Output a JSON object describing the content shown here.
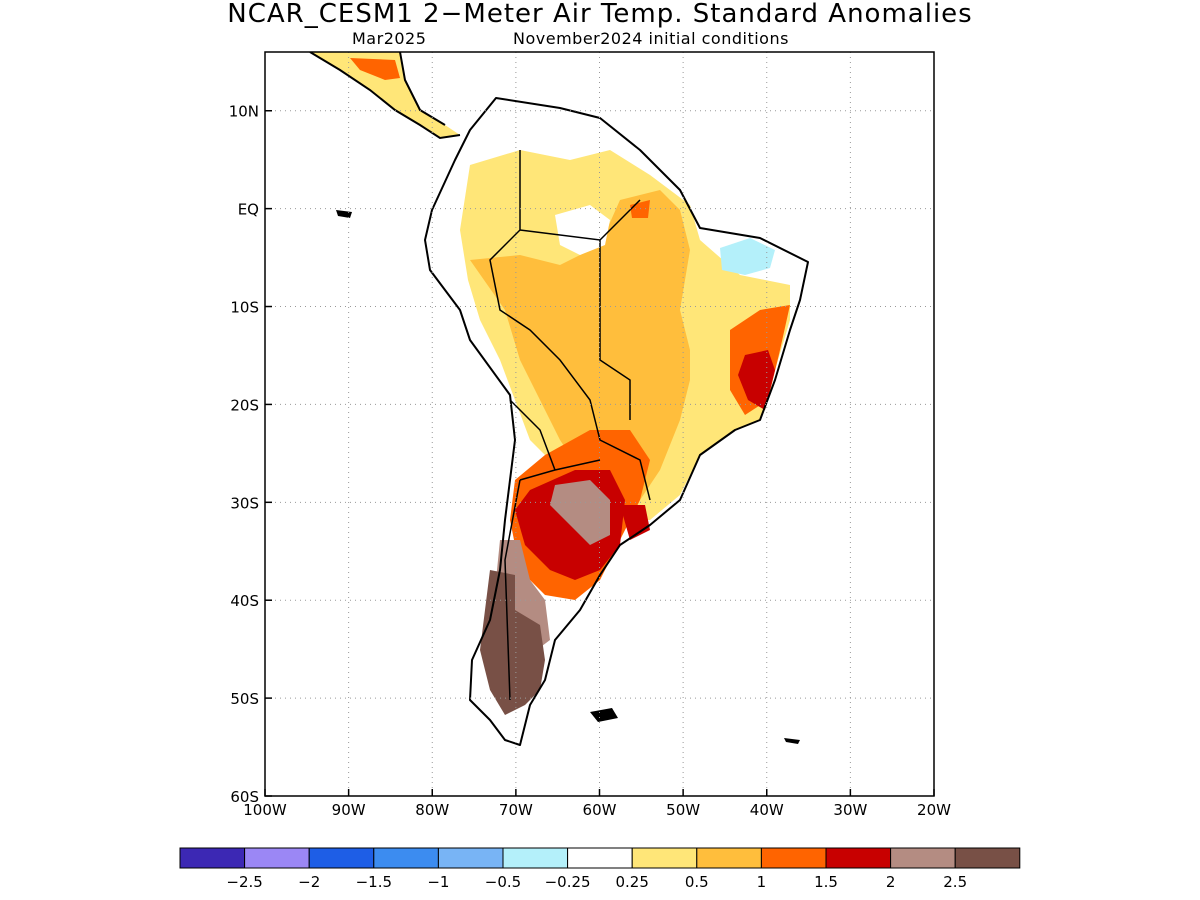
{
  "title": "NCAR_CESM1 2−Meter Air Temp. Standard Anomalies",
  "subtitle_left": "Mar2025",
  "subtitle_right": "November2024 initial conditions",
  "map": {
    "lon_range": [
      -100,
      -20
    ],
    "lat_range": [
      -60,
      16
    ],
    "x_ticks": [
      {
        "lon": -100,
        "label": "100W"
      },
      {
        "lon": -90,
        "label": "90W"
      },
      {
        "lon": -80,
        "label": "80W"
      },
      {
        "lon": -70,
        "label": "70W"
      },
      {
        "lon": -60,
        "label": "60W"
      },
      {
        "lon": -50,
        "label": "50W"
      },
      {
        "lon": -40,
        "label": "40W"
      },
      {
        "lon": -30,
        "label": "30W"
      },
      {
        "lon": -20,
        "label": "20W"
      }
    ],
    "y_ticks": [
      {
        "lat": 10,
        "label": "10N"
      },
      {
        "lat": 0,
        "label": "EQ"
      },
      {
        "lat": -10,
        "label": "10S"
      },
      {
        "lat": -20,
        "label": "20S"
      },
      {
        "lat": -30,
        "label": "30S"
      },
      {
        "lat": -40,
        "label": "40S"
      },
      {
        "lat": -50,
        "label": "50S"
      },
      {
        "lat": -60,
        "label": "60S"
      }
    ],
    "grid": "dotted"
  },
  "colorbar": {
    "colors": [
      "#3c28b4",
      "#9b87f5",
      "#1e5ee6",
      "#3c8cf0",
      "#78b4f5",
      "#b4f0fa",
      "#ffffff",
      "#ffe678",
      "#ffbe3c",
      "#ff6400",
      "#c80000",
      "#b48c82",
      "#785046"
    ],
    "labels": [
      "−2.5",
      "−2",
      "−1.5",
      "−1",
      "−0.5",
      "−0.25",
      "0.25",
      "0.5",
      "1",
      "1.5",
      "2",
      "2.5"
    ]
  }
}
